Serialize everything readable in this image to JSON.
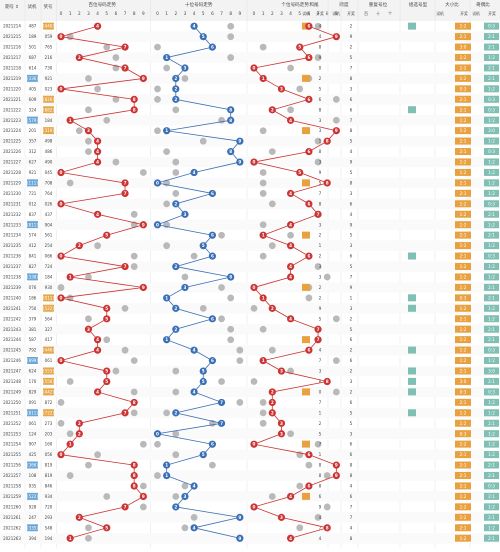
{
  "header": {
    "issue_label": "期号 ⇕",
    "trial_label": "试机",
    "draw_label": "奖号",
    "hundreds_title": "百位号码走势",
    "tens_title": "十位号码走势",
    "units_title": "个位号码走势",
    "digits": [
      "0",
      "1",
      "2",
      "3",
      "4",
      "5",
      "6",
      "7",
      "8",
      "9"
    ],
    "sum_title": "和尾",
    "span_title": "跨度",
    "repeat_title": "重复号位",
    "type_title": "组选号型",
    "size_title": "大小比",
    "odd_title": "奇偶比",
    "sub_trial": "试机",
    "sub_draw": "开奖",
    "sub_hundred": "百",
    "sub_ten": "十",
    "sub_unit": "个"
  },
  "colors": {
    "hundreds": "#cc3333",
    "tens": "#3a6fb5",
    "units": "#cc3333",
    "grey_ball": "#b9b9b9",
    "trial_highlight": "#e6a64a",
    "teal_box": "#7fbfb4",
    "orange_box": "#e8a13e",
    "blue_box": "#6aa6d6",
    "missing_text": "#999999"
  },
  "rows": [
    {
      "issue": "2021214",
      "trial": "487",
      "draw": "[446]",
      "hl": true
    },
    {
      "issue": "2021215",
      "trial": "189",
      "draw": "059"
    },
    {
      "issue": "2021216",
      "trial": "501",
      "draw": "765"
    },
    {
      "issue": "2021217",
      "trial": "687",
      "draw": "216"
    },
    {
      "issue": "2021218",
      "trial": "614",
      "draw": "730"
    },
    {
      "issue": "2021219",
      "trial": "[336]",
      "draw": "921",
      "hl": true
    },
    {
      "issue": "2021220",
      "trial": "405",
      "draw": "023"
    },
    {
      "issue": "2021221",
      "trial": "609",
      "draw": "[826]",
      "hl": true
    },
    {
      "issue": "2021222",
      "trial": "324",
      "draw": "[882]",
      "hl": true
    },
    {
      "issue": "2021223",
      "trial": "[579]",
      "draw": "184",
      "hl": true
    },
    {
      "issue": "2021224",
      "trial": "201",
      "draw": "[319]",
      "hl": true
    },
    {
      "issue": "2021225",
      "trial": "357",
      "draw": "498"
    },
    {
      "issue": "2021226",
      "trial": "312",
      "draw": "486"
    },
    {
      "issue": "2021227",
      "trial": "627",
      "draw": "490"
    },
    {
      "issue": "2021228",
      "trial": "921",
      "draw": "045"
    },
    {
      "issue": "2021229",
      "trial": "[111]",
      "draw": "708",
      "hl": true
    },
    {
      "issue": "2021230",
      "trial": "721",
      "draw": "764"
    },
    {
      "issue": "2021231",
      "trial": "012",
      "draw": "026"
    },
    {
      "issue": "2021232",
      "trial": "837",
      "draw": "437"
    },
    {
      "issue": "2021233",
      "trial": "[811]",
      "draw": "904",
      "hl": true
    },
    {
      "issue": "2021234",
      "trial": "574",
      "draw": "561"
    },
    {
      "issue": "2021235",
      "trial": "412",
      "draw": "254"
    },
    {
      "issue": "2021236",
      "trial": "841",
      "draw": "066"
    },
    {
      "issue": "2021237",
      "trial": "827",
      "draw": "724"
    },
    {
      "issue": "2021238",
      "trial": "[338]",
      "draw": "184",
      "hl": true
    },
    {
      "issue": "2021239",
      "trial": "076",
      "draw": "930"
    },
    {
      "issue": "2021240",
      "trial": "186",
      "draw": "[011]",
      "hl": true
    },
    {
      "issue": "2021241",
      "trial": "750",
      "draw": "[522]",
      "hl": true
    },
    {
      "issue": "2021242",
      "trial": "379",
      "draw": "564"
    },
    {
      "issue": "2021243",
      "trial": "381",
      "draw": "327"
    },
    {
      "issue": "2021244",
      "trial": "587",
      "draw": "417"
    },
    {
      "issue": "2021245",
      "trial": "792",
      "draw": "[446]",
      "hl": true
    },
    {
      "issue": "2021246",
      "trial": "[899]",
      "draw": "061",
      "hl": true
    },
    {
      "issue": "2021247",
      "trial": "624",
      "draw": "[553]",
      "hl": true
    },
    {
      "issue": "2021248",
      "trial": "170",
      "draw": "[558]",
      "hl": true
    },
    {
      "issue": "2021249",
      "trial": "829",
      "draw": "[442]",
      "hl": true
    },
    {
      "issue": "2021250",
      "trial": "091",
      "draw": "872"
    },
    {
      "issue": "2021251",
      "trial": "[811]",
      "draw": "[722]",
      "hl": true
    },
    {
      "issue": "2021252",
      "trial": "061",
      "draw": "273"
    },
    {
      "issue": "2021253",
      "trial": "124",
      "draw": "203"
    },
    {
      "issue": "2021254",
      "trial": "907",
      "draw": "160"
    },
    {
      "issue": "2021255",
      "trial": "425",
      "draw": "056"
    },
    {
      "issue": "2021256",
      "trial": "[366]",
      "draw": "819",
      "hl": true
    },
    {
      "issue": "2021257",
      "trial": "108",
      "draw": "819"
    },
    {
      "issue": "2021258",
      "trial": "935",
      "draw": "846"
    },
    {
      "issue": "2021259",
      "trial": "[522]",
      "draw": "934",
      "hl": true
    },
    {
      "issue": "2021260",
      "trial": "928",
      "draw": "720"
    },
    {
      "issue": "2021261",
      "trial": "247",
      "draw": "293"
    },
    {
      "issue": "2021262",
      "trial": "[335]",
      "draw": "548",
      "hl": true
    },
    {
      "issue": "2021263",
      "trial": "394",
      "draw": "194"
    }
  ]
}
